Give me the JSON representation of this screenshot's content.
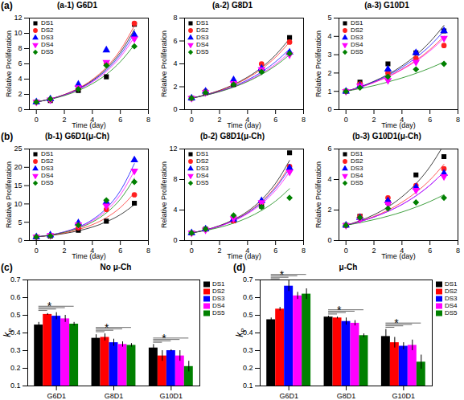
{
  "chart_data": [
    {
      "type": "scatter",
      "title": "(a-1) G6D1",
      "annotations": [
        {
          "text": "(a)"
        }
      ],
      "x_label": "Time (day)",
      "y_label": "Relative Proliferation",
      "x": [
        0,
        1,
        3,
        5,
        7
      ],
      "xlim": [
        -0.5,
        8
      ],
      "xticks": [
        0,
        2,
        4,
        6,
        8
      ],
      "ylim": [
        0,
        12
      ],
      "yticks": [
        0,
        2,
        4,
        6,
        8,
        10,
        12
      ],
      "legend": "top-left",
      "fit_x": [
        0,
        1,
        2,
        3,
        4,
        5,
        6,
        7
      ],
      "series": [
        {
          "name": "DS1",
          "color": "#000000",
          "marker": "square",
          "values": [
            1,
            1.2,
            2.5,
            4.3,
            11.2
          ],
          "fit": [
            1,
            1.4,
            1.96,
            2.74,
            3.83,
            5.36,
            7.5,
            10.5
          ]
        },
        {
          "name": "DS2",
          "color": "#ff2020",
          "marker": "circle",
          "values": [
            1,
            1.3,
            2.8,
            6.0,
            11.3
          ],
          "fit": [
            1,
            1.41,
            1.98,
            2.79,
            3.94,
            5.55,
            7.81,
            11
          ]
        },
        {
          "name": "DS3",
          "color": "#0000ff",
          "marker": "triangle",
          "values": [
            1,
            1.4,
            3.3,
            7.8,
            9.8
          ],
          "fit": [
            1,
            1.39,
            1.93,
            2.68,
            3.73,
            5.18,
            7.2,
            10
          ]
        },
        {
          "name": "DS4",
          "color": "#ff00ff",
          "marker": "triangle-down",
          "values": [
            1,
            1.3,
            2.9,
            6.2,
            9.3
          ],
          "fit": [
            1,
            1.38,
            1.9,
            2.62,
            3.62,
            4.99,
            6.89,
            9.5
          ]
        },
        {
          "name": "DS5",
          "color": "#008000",
          "marker": "diamond",
          "values": [
            1,
            1.4,
            2.7,
            5.8,
            8.3
          ],
          "fit": [
            1,
            1.36,
            1.84,
            2.5,
            3.4,
            4.62,
            6.28,
            8.5
          ]
        }
      ]
    },
    {
      "type": "scatter",
      "title": "(a-2) G8D1",
      "x_label": "Time (day)",
      "y_label": "Relative Proliferation",
      "x": [
        0,
        1,
        3,
        5,
        7
      ],
      "xlim": [
        -0.5,
        8
      ],
      "xticks": [
        0,
        2,
        4,
        6,
        8
      ],
      "ylim": [
        0,
        8
      ],
      "yticks": [
        0,
        2,
        4,
        6,
        8
      ],
      "legend": "top-left",
      "fit_x": [
        0,
        1,
        2,
        3,
        4,
        5,
        6,
        7
      ],
      "series": [
        {
          "name": "DS1",
          "color": "#000000",
          "marker": "square",
          "values": [
            1,
            1.5,
            2.2,
            3.4,
            6.3
          ],
          "fit": [
            1,
            1.3,
            1.68,
            2.19,
            2.84,
            3.68,
            4.78,
            6.2
          ]
        },
        {
          "name": "DS2",
          "color": "#ff2020",
          "marker": "circle",
          "values": [
            1,
            1.6,
            2.3,
            4.0,
            5.9
          ],
          "fit": [
            1,
            1.29,
            1.66,
            2.14,
            2.76,
            3.55,
            4.58,
            5.9
          ]
        },
        {
          "name": "DS3",
          "color": "#0000ff",
          "marker": "triangle",
          "values": [
            1,
            1.6,
            2.6,
            3.6,
            5.0
          ],
          "fit": [
            1,
            1.27,
            1.61,
            2.04,
            2.59,
            3.29,
            4.18,
            5.3
          ]
        },
        {
          "name": "DS4",
          "color": "#ff00ff",
          "marker": "triangle-down",
          "values": [
            1,
            1.5,
            2.3,
            3.5,
            4.8
          ],
          "fit": [
            1,
            1.26,
            1.58,
            1.99,
            2.51,
            3.16,
            3.97,
            5.0
          ]
        },
        {
          "name": "DS5",
          "color": "#008000",
          "marker": "diamond",
          "values": [
            1,
            1.5,
            2.2,
            3.3,
            4.9
          ],
          "fit": [
            1,
            1.25,
            1.57,
            1.96,
            2.45,
            3.07,
            3.84,
            4.8
          ]
        }
      ]
    },
    {
      "type": "scatter",
      "title": "(a-3) G10D1",
      "x_label": "Time (day)",
      "y_label": "Relative Proliferation",
      "x": [
        0,
        1,
        3,
        5,
        7
      ],
      "xlim": [
        -0.5,
        8
      ],
      "xticks": [
        0,
        2,
        4,
        6,
        8
      ],
      "ylim": [
        0,
        5
      ],
      "yticks": [
        0,
        1,
        2,
        3,
        4,
        5
      ],
      "legend": "top-left",
      "fit_x": [
        0,
        1,
        2,
        3,
        4,
        5,
        6,
        7
      ],
      "series": [
        {
          "name": "DS1",
          "color": "#000000",
          "marker": "square",
          "values": [
            1,
            1.5,
            2.5,
            3.1,
            4.3
          ],
          "fit": [
            1,
            1.24,
            1.55,
            1.92,
            2.39,
            2.97,
            3.7,
            4.6
          ]
        },
        {
          "name": "DS2",
          "color": "#ff2020",
          "marker": "circle",
          "values": [
            1,
            1.4,
            2.0,
            2.8,
            3.5
          ],
          "fit": [
            1,
            1.22,
            1.49,
            1.81,
            2.21,
            2.69,
            3.28,
            4.0
          ]
        },
        {
          "name": "DS3",
          "color": "#0000ff",
          "marker": "triangle",
          "values": [
            1,
            1.3,
            2.2,
            3.1,
            4.3
          ],
          "fit": [
            1,
            1.23,
            1.52,
            1.87,
            2.3,
            2.84,
            3.49,
            4.3
          ]
        },
        {
          "name": "DS4",
          "color": "#ff00ff",
          "marker": "triangle-down",
          "values": [
            1,
            1.3,
            1.6,
            2.6,
            3.9
          ],
          "fit": [
            1,
            1.21,
            1.48,
            1.79,
            2.18,
            2.64,
            3.21,
            3.9
          ]
        },
        {
          "name": "DS5",
          "color": "#008000",
          "marker": "diamond",
          "values": [
            1,
            1.2,
            1.8,
            2.2,
            2.5
          ],
          "fit": [
            1,
            1.15,
            1.31,
            1.51,
            1.73,
            1.98,
            2.27,
            2.6
          ]
        }
      ]
    },
    {
      "type": "scatter",
      "title": "(b-1) G6D1(μ-Ch)",
      "annotations": [
        {
          "text": "(b)"
        }
      ],
      "x_label": "Time (day)",
      "y_label": "Relative Proliferation",
      "x": [
        0,
        1,
        3,
        5,
        7
      ],
      "xlim": [
        -0.5,
        8
      ],
      "xticks": [
        0,
        2,
        4,
        6,
        8
      ],
      "ylim": [
        0,
        25
      ],
      "yticks": [
        0,
        5,
        10,
        15,
        20,
        25
      ],
      "legend": "top-left",
      "fit_x": [
        0,
        1,
        2,
        3,
        4,
        5,
        6,
        7
      ],
      "series": [
        {
          "name": "DS1",
          "color": "#000000",
          "marker": "square",
          "values": [
            1,
            1.2,
            2.8,
            5.3,
            10.2
          ],
          "fit": [
            1,
            1.39,
            1.92,
            2.66,
            3.68,
            5.11,
            7.07,
            9.8
          ]
        },
        {
          "name": "DS2",
          "color": "#ff2020",
          "marker": "circle",
          "values": [
            1,
            1.4,
            3.5,
            8.5,
            12.5
          ],
          "fit": [
            1,
            1.44,
            2.08,
            3.0,
            4.33,
            6.25,
            9.01,
            13
          ]
        },
        {
          "name": "DS3",
          "color": "#0000ff",
          "marker": "triangle",
          "values": [
            1,
            1.5,
            4.8,
            10.5,
            22
          ],
          "fit": [
            1,
            1.54,
            2.39,
            3.69,
            5.69,
            8.8,
            13.6,
            21
          ]
        },
        {
          "name": "DS4",
          "color": "#ff00ff",
          "marker": "triangle-down",
          "values": [
            1,
            1.4,
            4.3,
            9.5,
            19
          ],
          "fit": [
            1,
            1.52,
            2.32,
            3.53,
            5.38,
            8.19,
            12.5,
            19
          ]
        },
        {
          "name": "DS5",
          "color": "#008000",
          "marker": "diamond",
          "values": [
            1,
            1.3,
            4.2,
            11,
            16
          ],
          "fit": [
            1,
            1.5,
            2.25,
            3.37,
            5.05,
            7.57,
            11.3,
            17
          ]
        }
      ]
    },
    {
      "type": "scatter",
      "title": "(b-2) G8D1(μ-Ch)",
      "x_label": "Time (day)",
      "y_label": "Relative Proliferation",
      "x": [
        0,
        1,
        3,
        5,
        7
      ],
      "xlim": [
        -0.5,
        8
      ],
      "xticks": [
        0,
        2,
        4,
        6,
        8
      ],
      "ylim": [
        0,
        12
      ],
      "yticks": [
        0,
        4,
        8,
        12
      ],
      "legend": "top-left",
      "fit_x": [
        0,
        1,
        2,
        3,
        4,
        5,
        6,
        7
      ],
      "series": [
        {
          "name": "DS1",
          "color": "#000000",
          "marker": "square",
          "values": [
            1,
            1.5,
            2.6,
            4.5,
            11.5
          ],
          "fit": [
            1,
            1.4,
            1.96,
            2.74,
            3.83,
            5.36,
            7.5,
            10.5
          ]
        },
        {
          "name": "DS2",
          "color": "#ff2020",
          "marker": "circle",
          "values": [
            1,
            1.5,
            2.6,
            5.0,
            9.7
          ],
          "fit": [
            1,
            1.39,
            1.92,
            2.66,
            3.68,
            5.11,
            7.07,
            9.8
          ]
        },
        {
          "name": "DS3",
          "color": "#0000ff",
          "marker": "triangle",
          "values": [
            1,
            1.5,
            2.8,
            5.2,
            9.5
          ],
          "fit": [
            1,
            1.38,
            1.9,
            2.62,
            3.62,
            4.99,
            6.89,
            9.5
          ]
        },
        {
          "name": "DS4",
          "color": "#ff00ff",
          "marker": "triangle-down",
          "values": [
            1,
            1.4,
            2.9,
            5.0,
            9.0
          ],
          "fit": [
            1,
            1.37,
            1.87,
            2.56,
            3.51,
            4.8,
            6.57,
            9.0
          ]
        },
        {
          "name": "DS5",
          "color": "#008000",
          "marker": "diamond",
          "values": [
            1,
            1.5,
            3.3,
            4.4,
            5.6
          ],
          "fit": [
            1,
            1.32,
            1.73,
            2.27,
            2.99,
            3.94,
            5.17,
            6.8
          ]
        }
      ]
    },
    {
      "type": "scatter",
      "title": "(b-3) G10D1(μ-Ch)",
      "x_label": "Time (day)",
      "y_label": "Relative Proliferation",
      "x": [
        0,
        1,
        3,
        5,
        7
      ],
      "xlim": [
        -0.5,
        8
      ],
      "xticks": [
        0,
        2,
        4,
        6,
        8
      ],
      "ylim": [
        0,
        6
      ],
      "yticks": [
        0,
        2,
        4,
        6
      ],
      "legend": "top-left",
      "fit_x": [
        0,
        1,
        2,
        3,
        4,
        5,
        6,
        7
      ],
      "series": [
        {
          "name": "DS1",
          "color": "#000000",
          "marker": "square",
          "values": [
            1,
            1.6,
            2.5,
            4.3,
            5.5
          ],
          "fit": [
            1,
            1.3,
            1.69,
            2.2,
            2.87,
            3.72,
            4.84,
            6.3
          ]
        },
        {
          "name": "DS2",
          "color": "#ff2020",
          "marker": "circle",
          "values": [
            1,
            1.6,
            2.8,
            3.6,
            4.7
          ],
          "fit": [
            1,
            1.26,
            1.58,
            1.99,
            2.51,
            3.16,
            3.97,
            5.0
          ]
        },
        {
          "name": "DS3",
          "color": "#0000ff",
          "marker": "triangle",
          "values": [
            1,
            1.5,
            2.6,
            3.5,
            4.4
          ],
          "fit": [
            1,
            1.24,
            1.54,
            1.91,
            2.36,
            2.93,
            3.63,
            4.5
          ]
        },
        {
          "name": "DS4",
          "color": "#ff00ff",
          "marker": "triangle-down",
          "values": [
            1,
            1.4,
            2.4,
            3.3,
            4.2
          ],
          "fit": [
            1,
            1.24,
            1.54,
            1.91,
            2.36,
            2.93,
            3.63,
            4.5
          ]
        },
        {
          "name": "DS5",
          "color": "#008000",
          "marker": "diamond",
          "values": [
            1,
            1.5,
            2.1,
            2.5,
            2.8
          ],
          "fit": [
            1,
            1.17,
            1.37,
            1.6,
            1.87,
            2.19,
            2.56,
            3.0
          ]
        }
      ]
    },
    {
      "type": "bar",
      "title": "No μ-Ch",
      "annotations": [
        {
          "text": "(c)"
        },
        {
          "text": "*",
          "category": "G6D1"
        },
        {
          "text": "*",
          "category": "G8D1"
        },
        {
          "text": "*",
          "category": "G10D1"
        }
      ],
      "y_label": "kP",
      "categories": [
        "G6D1",
        "G8D1",
        "G10D1"
      ],
      "ylim": [
        0.1,
        0.7
      ],
      "yticks": [
        0.1,
        0.2,
        0.3,
        0.4,
        0.5,
        0.6,
        0.7
      ],
      "legend": "top-right",
      "series": [
        {
          "name": "DS1",
          "color": "#000000",
          "values": [
            0.445,
            0.37,
            0.315
          ],
          "errors": [
            0.015,
            0.02,
            0.02
          ]
        },
        {
          "name": "DS2",
          "color": "#ff0000",
          "values": [
            0.505,
            0.375,
            0.27
          ],
          "errors": [
            0.005,
            0.02,
            0.03
          ]
        },
        {
          "name": "DS3",
          "color": "#0000ff",
          "values": [
            0.495,
            0.345,
            0.3
          ],
          "errors": [
            0.02,
            0.02,
            0.005
          ]
        },
        {
          "name": "DS4",
          "color": "#ff00ff",
          "values": [
            0.48,
            0.335,
            0.27
          ],
          "errors": [
            0.02,
            0.015,
            0.03
          ]
        },
        {
          "name": "DS5",
          "color": "#008000",
          "values": [
            0.45,
            0.33,
            0.21
          ],
          "errors": [
            0.01,
            0.01,
            0.03
          ]
        }
      ]
    },
    {
      "type": "bar",
      "title": "μ-Ch",
      "annotations": [
        {
          "text": "(d)"
        },
        {
          "text": "*",
          "category": "G6D1"
        },
        {
          "text": "*",
          "category": "G8D1"
        },
        {
          "text": "*",
          "category": "G10D1"
        }
      ],
      "y_label": "kP",
      "categories": [
        "G6D1",
        "G8D1",
        "G10D1"
      ],
      "ylim": [
        0.1,
        0.7
      ],
      "yticks": [
        0.1,
        0.2,
        0.3,
        0.4,
        0.5,
        0.6,
        0.7
      ],
      "legend": "top-right",
      "series": [
        {
          "name": "DS1",
          "color": "#000000",
          "values": [
            0.475,
            0.49,
            0.38
          ],
          "errors": [
            0.01,
            0.005,
            0.04
          ]
        },
        {
          "name": "DS2",
          "color": "#ff0000",
          "values": [
            0.535,
            0.485,
            0.345
          ],
          "errors": [
            0.01,
            0.005,
            0.03
          ]
        },
        {
          "name": "DS3",
          "color": "#0000ff",
          "values": [
            0.665,
            0.465,
            0.325
          ],
          "errors": [
            0.03,
            0.02,
            0.02
          ]
        },
        {
          "name": "DS4",
          "color": "#ff00ff",
          "values": [
            0.61,
            0.455,
            0.33
          ],
          "errors": [
            0.02,
            0.015,
            0.03
          ]
        },
        {
          "name": "DS5",
          "color": "#008000",
          "values": [
            0.62,
            0.385,
            0.235
          ],
          "errors": [
            0.03,
            0.01,
            0.04
          ]
        }
      ]
    }
  ]
}
